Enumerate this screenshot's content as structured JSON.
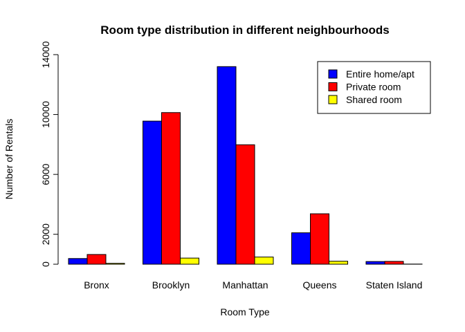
{
  "chart_data": {
    "type": "bar",
    "title": "Room type distribution in different neighbourhoods",
    "xlabel": "Room Type",
    "ylabel": "Number of Rentals",
    "ylim": [
      0,
      14000
    ],
    "yticks": [
      0,
      2000,
      6000,
      10000,
      14000
    ],
    "categories": [
      "Bronx",
      "Brooklyn",
      "Manhattan",
      "Queens",
      "Staten Island"
    ],
    "series": [
      {
        "name": "Entire home/apt",
        "color": "#0000ff",
        "values": [
          380,
          9560,
          13200,
          2100,
          180
        ]
      },
      {
        "name": "Private room",
        "color": "#ff0000",
        "values": [
          650,
          10130,
          7980,
          3370,
          190
        ]
      },
      {
        "name": "Shared room",
        "color": "#ffff00",
        "values": [
          60,
          410,
          480,
          200,
          10
        ]
      }
    ],
    "grid": false,
    "legend_position": "top-right"
  }
}
